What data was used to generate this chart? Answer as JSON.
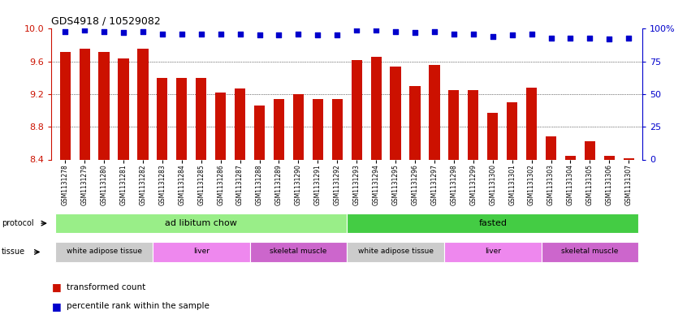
{
  "title": "GDS4918 / 10529082",
  "samples": [
    "GSM1131278",
    "GSM1131279",
    "GSM1131280",
    "GSM1131281",
    "GSM1131282",
    "GSM1131283",
    "GSM1131284",
    "GSM1131285",
    "GSM1131286",
    "GSM1131287",
    "GSM1131288",
    "GSM1131289",
    "GSM1131290",
    "GSM1131291",
    "GSM1131292",
    "GSM1131293",
    "GSM1131294",
    "GSM1131295",
    "GSM1131296",
    "GSM1131297",
    "GSM1131298",
    "GSM1131299",
    "GSM1131300",
    "GSM1131301",
    "GSM1131302",
    "GSM1131303",
    "GSM1131304",
    "GSM1131305",
    "GSM1131306",
    "GSM1131307"
  ],
  "bar_values": [
    9.72,
    9.76,
    9.72,
    9.64,
    9.76,
    9.4,
    9.4,
    9.4,
    9.22,
    9.27,
    9.06,
    9.14,
    9.2,
    9.14,
    9.14,
    9.62,
    9.66,
    9.54,
    9.3,
    9.56,
    9.25,
    9.25,
    8.97,
    9.1,
    9.28,
    8.68,
    8.44,
    8.62,
    8.44,
    8.41
  ],
  "percentile_values": [
    98,
    99,
    98,
    97,
    98,
    96,
    96,
    96,
    96,
    96,
    95,
    95,
    96,
    95,
    95,
    99,
    99,
    98,
    97,
    98,
    96,
    96,
    94,
    95,
    96,
    93,
    93,
    93,
    92,
    93
  ],
  "bar_color": "#cc1100",
  "dot_color": "#0000cc",
  "ylim_left": [
    8.4,
    10.0
  ],
  "yticks_left": [
    8.4,
    8.8,
    9.2,
    9.6,
    10.0
  ],
  "ylim_right": [
    0,
    100
  ],
  "yticks_right": [
    0,
    25,
    50,
    75,
    100
  ],
  "yticklabels_right": [
    "0",
    "25",
    "50",
    "75",
    "100%"
  ],
  "protocol_groups": [
    {
      "label": "ad libitum chow",
      "start": 0,
      "end": 15,
      "color": "#99ee88"
    },
    {
      "label": "fasted",
      "start": 15,
      "end": 30,
      "color": "#44cc44"
    }
  ],
  "tissue_groups": [
    {
      "label": "white adipose tissue",
      "start": 0,
      "end": 5,
      "color": "#cccccc"
    },
    {
      "label": "liver",
      "start": 5,
      "end": 10,
      "color": "#ee88ee"
    },
    {
      "label": "skeletal muscle",
      "start": 10,
      "end": 15,
      "color": "#cc66cc"
    },
    {
      "label": "white adipose tissue",
      "start": 15,
      "end": 20,
      "color": "#cccccc"
    },
    {
      "label": "liver",
      "start": 20,
      "end": 25,
      "color": "#ee88ee"
    },
    {
      "label": "skeletal muscle",
      "start": 25,
      "end": 30,
      "color": "#cc66cc"
    }
  ]
}
